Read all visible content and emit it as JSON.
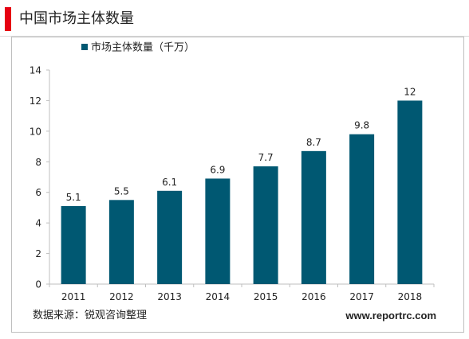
{
  "header": {
    "title": "中国市场主体数量"
  },
  "footer": {
    "source": "数据来源：锐观咨询整理",
    "site": "www.reportrc.com"
  },
  "colors": {
    "accent": "#e60012",
    "bar": "#005872"
  },
  "chart_data": {
    "type": "bar",
    "categories": [
      "2011",
      "2012",
      "2013",
      "2014",
      "2015",
      "2016",
      "2017",
      "2018"
    ],
    "series": [
      {
        "name": "市场主体数量（千万）",
        "values": [
          5.1,
          5.5,
          6.1,
          6.9,
          7.7,
          8.7,
          9.8,
          12
        ],
        "labels": [
          "5.1",
          "5.5",
          "6.1",
          "6.9",
          "7.7",
          "8.7",
          "9.8",
          "12"
        ]
      }
    ],
    "ylim": [
      0,
      14
    ],
    "yticks": [
      0,
      2,
      4,
      6,
      8,
      10,
      12,
      14
    ],
    "legend": "top-left",
    "grid": false
  }
}
